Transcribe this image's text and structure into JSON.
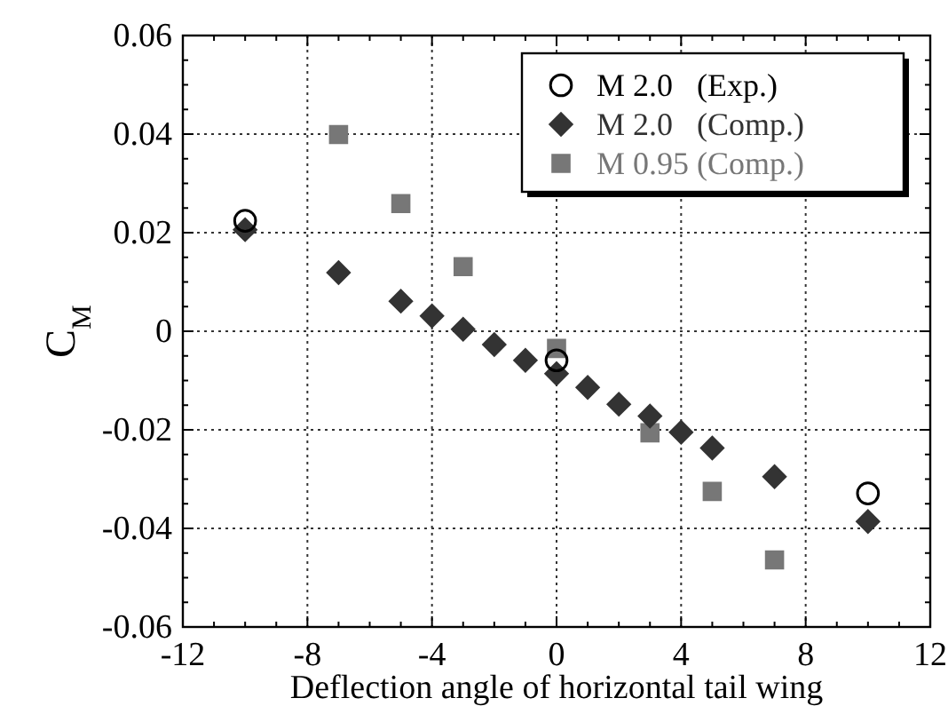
{
  "chart_data": {
    "type": "scatter",
    "xlabel": "Deflection angle of horizontal tail wing",
    "ylabel": "C$_{M}$",
    "xlim": [
      -12,
      12
    ],
    "xticks": [
      -12,
      -8,
      -4,
      0,
      4,
      8,
      12
    ],
    "ylim": [
      -0.06,
      0.06
    ],
    "yticks": [
      -0.06,
      -0.04,
      -0.02,
      0,
      0.02,
      0.04,
      0.06
    ],
    "grid": true,
    "legend": "top right",
    "series": [
      {
        "name": "M 2.0   (Exp.)",
        "color": "#000000",
        "marker": "circle",
        "x": [
          -10,
          0,
          10
        ],
        "values": [
          0.0224,
          -0.0059,
          -0.0329
        ]
      },
      {
        "name": "M 2.0   (Comp.)",
        "color": "#333333",
        "marker": "diamond",
        "x": [
          -10,
          -7,
          -5,
          -4,
          -3,
          -2,
          -1,
          0,
          1,
          2,
          3,
          4,
          5,
          7,
          10
        ],
        "values": [
          0.0206,
          0.0119,
          0.0061,
          0.0031,
          0.0004,
          -0.0027,
          -0.0059,
          -0.0086,
          -0.0114,
          -0.0148,
          -0.0172,
          -0.0205,
          -0.0237,
          -0.0295,
          -0.0386
        ]
      },
      {
        "name": "M 0.95 (Comp.)",
        "color": "#777777",
        "marker": "square",
        "x": [
          -7,
          -5,
          -3,
          0,
          3,
          5,
          7
        ],
        "values": [
          0.0399,
          0.0259,
          0.0131,
          -0.0035,
          -0.0206,
          -0.0325,
          -0.0464
        ]
      }
    ]
  }
}
